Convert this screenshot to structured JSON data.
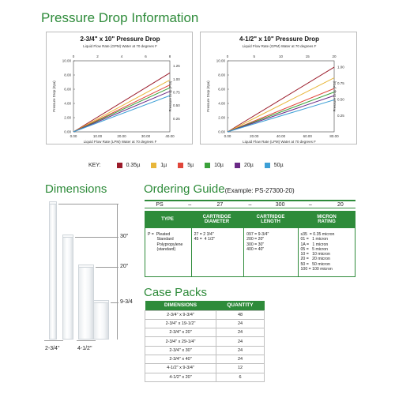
{
  "pressure_drop": {
    "title": "Pressure Drop Information",
    "charts": [
      {
        "title": "2-3/4\" x 10\" Pressure Drop",
        "top_axis_label": "Liquid Flow Rate (GPM) Water at 70 degrees F",
        "top_ticks": [
          "0",
          "2",
          "4",
          "6",
          "8"
        ],
        "bottom_axis_label": "Liquid Flow Rate (LPM) Water at 70 degrees F",
        "bottom_ticks": [
          "0.00",
          "10.00",
          "20.00",
          "30.00",
          "40.00"
        ],
        "left_axis_label": "Pressure Drop (Kpa)",
        "left_ticks": [
          "0.00",
          "2.00",
          "4.00",
          "6.00",
          "8.00",
          "10.00"
        ],
        "right_axis_label": "Pressure Drop (PSI)",
        "right_ticks": [
          "0.25",
          "0.50",
          "0.75",
          "1.00",
          "1.25"
        ]
      },
      {
        "title": "4-1/2\" x 10\" Pressure Drop",
        "top_axis_label": "Liquid Flow Rate (GPM) Water at 70 degrees F",
        "top_ticks": [
          "0",
          "5",
          "10",
          "15",
          "20"
        ],
        "bottom_axis_label": "Liquid Flow Rate (LPM) Water at 70 degrees F",
        "bottom_ticks": [
          "0.00",
          "20.00",
          "40.00",
          "60.00",
          "80.00"
        ],
        "left_axis_label": "Pressure Drop (Kpa)",
        "left_ticks": [
          "0.00",
          "2.00",
          "4.00",
          "6.00",
          "8.00",
          "10.00"
        ],
        "right_axis_label": "Pressure Drop (PSI)",
        "right_ticks": [
          "0.25",
          "0.50",
          "0.75",
          "1.00"
        ]
      }
    ],
    "key": {
      "label": "KEY:",
      "items": [
        {
          "label": "0.35µ",
          "color": "#9b1b2a"
        },
        {
          "label": "1µ",
          "color": "#e8b63a"
        },
        {
          "label": "5µ",
          "color": "#e0463a"
        },
        {
          "label": "10µ",
          "color": "#3aa13a"
        },
        {
          "label": "20µ",
          "color": "#6a2a86"
        },
        {
          "label": "50µ",
          "color": "#3d9fd6"
        }
      ]
    }
  },
  "chart_data": [
    {
      "type": "line",
      "title": "2-3/4\" x 10\" Pressure Drop",
      "xlabel": "Liquid Flow Rate (LPM) Water at 70 degrees F",
      "ylabel": "Pressure Drop (Kpa)",
      "x_range": [
        0,
        40
      ],
      "ylim": [
        0,
        10
      ],
      "series": [
        {
          "name": "0.35µ",
          "x": [
            0,
            40
          ],
          "y": [
            0,
            8.3
          ]
        },
        {
          "name": "1µ",
          "x": [
            0,
            40
          ],
          "y": [
            0,
            7.3
          ]
        },
        {
          "name": "5µ",
          "x": [
            0,
            40
          ],
          "y": [
            0,
            6.6
          ]
        },
        {
          "name": "10µ",
          "x": [
            0,
            40
          ],
          "y": [
            0,
            6.2
          ]
        },
        {
          "name": "20µ",
          "x": [
            0,
            40
          ],
          "y": [
            0,
            5.7
          ]
        },
        {
          "name": "50µ",
          "x": [
            0,
            40
          ],
          "y": [
            0,
            5.1
          ]
        }
      ]
    },
    {
      "type": "line",
      "title": "4-1/2\" x 10\" Pressure Drop",
      "xlabel": "Liquid Flow Rate (LPM) Water at 70 degrees F",
      "ylabel": "Pressure Drop (Kpa)",
      "x_range": [
        0,
        80
      ],
      "ylim": [
        0,
        10
      ],
      "series": [
        {
          "name": "0.35µ",
          "x": [
            0,
            80
          ],
          "y": [
            0,
            9.1
          ]
        },
        {
          "name": "1µ",
          "x": [
            0,
            80
          ],
          "y": [
            0,
            7.6
          ]
        },
        {
          "name": "5µ",
          "x": [
            0,
            80
          ],
          "y": [
            0,
            6.1
          ]
        },
        {
          "name": "10µ",
          "x": [
            0,
            80
          ],
          "y": [
            0,
            5.6
          ]
        },
        {
          "name": "20µ",
          "x": [
            0,
            80
          ],
          "y": [
            0,
            5.1
          ]
        },
        {
          "name": "50µ",
          "x": [
            0,
            80
          ],
          "y": [
            0,
            4.5
          ]
        }
      ]
    }
  ],
  "dimensions": {
    "title": "Dimensions",
    "lengths": [
      "30\"",
      "20\"",
      "9-3/4"
    ],
    "diameters": [
      "2-3/4\"",
      "4-1/2\""
    ]
  },
  "ordering_guide": {
    "title": "Ordering Guide",
    "example": "(Example: PS-27300-20)",
    "code": [
      "PS",
      "–",
      "27",
      "–",
      "300",
      "–",
      "20"
    ],
    "headers": [
      "TYPE",
      "CARTRIDGE\nDIAMETER",
      "CARTRIDGE\nLENGTH",
      "MICRON\nRATING"
    ],
    "columns": [
      "P =  Pleated\n        Standard\n        Polypropylene\n        (standard)",
      "27 = 2 3/4\"\n45 =  4 1/2\"",
      "097 = 9-3/4\"\n200 = 20\"\n300 = 30\"\n400 = 40\"",
      "s35  = 0.35 micron\n01 =   1 micron\n1A =   1 micron\n05 =   5 micron\n10 =   10 micron\n20 =   20 micron\n50 =   50 micron\n100 = 100 micron"
    ]
  },
  "case_packs": {
    "title": "Case Packs",
    "headers": [
      "DIMENSIONS",
      "QUANTITY"
    ],
    "rows": [
      [
        "2-3/4\" x 9-3/4\"",
        "48"
      ],
      [
        "2-3/4\" x 19-1/2\"",
        "24"
      ],
      [
        "2-3/4\" x 20\"",
        "24"
      ],
      [
        "2-3/4\" x 29-1/4\"",
        "24"
      ],
      [
        "2-3/4\" x 30\"",
        "24"
      ],
      [
        "2-3/4\" x 40\"",
        "24"
      ],
      [
        "4-1/2\" x 9-3/4\"",
        "12"
      ],
      [
        "4-1/2\" x 20\"",
        "6"
      ]
    ]
  }
}
